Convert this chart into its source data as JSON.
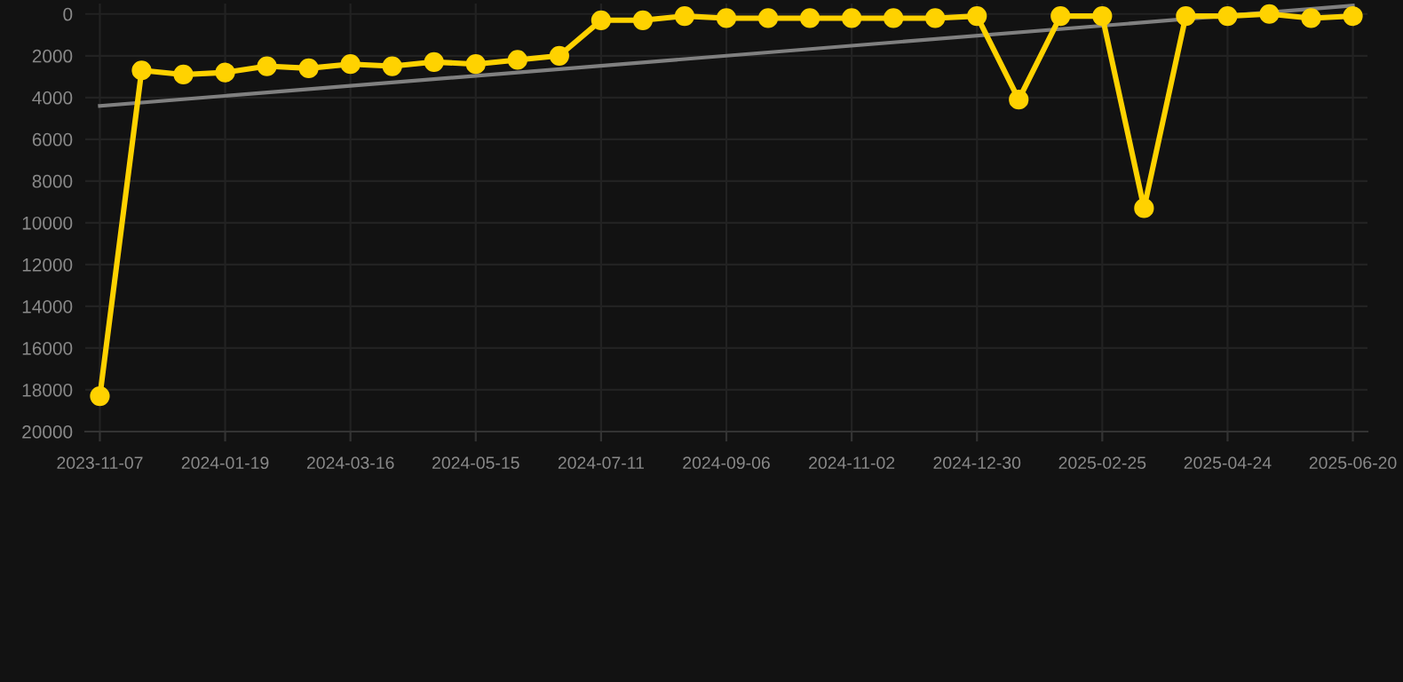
{
  "chart_data": {
    "type": "line",
    "categories": [
      "2023-11-07",
      null,
      null,
      "2024-01-19",
      null,
      null,
      "2024-03-16",
      null,
      null,
      "2024-05-15",
      null,
      null,
      "2024-07-11",
      null,
      null,
      "2024-09-06",
      null,
      null,
      "2024-11-02",
      null,
      null,
      "2024-12-30",
      null,
      null,
      "2025-02-25",
      null,
      null,
      "2025-04-24",
      null,
      null,
      "2025-06-20"
    ],
    "series": [
      {
        "color": "#ffd200",
        "marker": "circle",
        "values": [
          18300,
          2700,
          2900,
          2800,
          2500,
          2600,
          2400,
          2500,
          2300,
          2400,
          2200,
          2000,
          300,
          300,
          100,
          200,
          200,
          200,
          200,
          200,
          200,
          100,
          4100,
          100,
          100,
          9300,
          100,
          100,
          0,
          200,
          100
        ]
      },
      {
        "color": "#808080",
        "marker": "none",
        "values": [
          4400,
          null,
          null,
          null,
          null,
          null,
          null,
          null,
          null,
          null,
          null,
          null,
          null,
          null,
          null,
          null,
          null,
          null,
          null,
          null,
          null,
          null,
          null,
          null,
          null,
          null,
          null,
          null,
          null,
          null,
          -400
        ]
      }
    ],
    "ylim": [
      20000,
      -500
    ],
    "yticks": [
      0,
      2000,
      4000,
      6000,
      8000,
      10000,
      12000,
      14000,
      16000,
      18000,
      20000
    ],
    "grid": true
  }
}
